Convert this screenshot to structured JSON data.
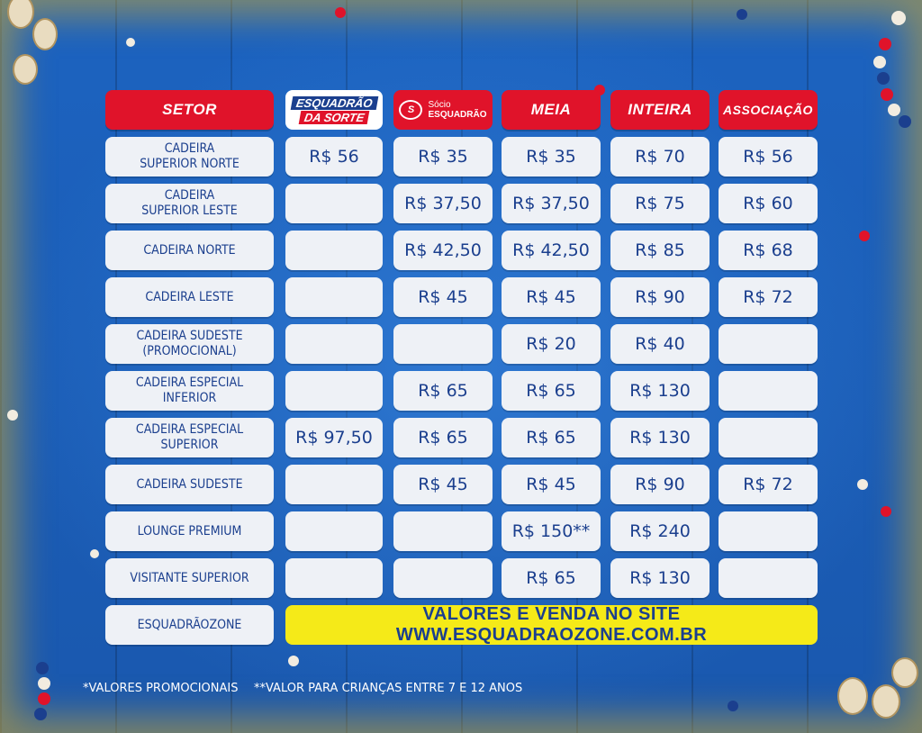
{
  "headers": {
    "setor": "Setor",
    "esquadrao_da_sorte_line1": "Esquadrão",
    "esquadrao_da_sorte_line2": "da Sorte",
    "socio_line1": "Sócio",
    "socio_line2": "Esquadrão",
    "meia": "Meia",
    "inteira": "Inteira",
    "associacao": "Associação"
  },
  "rows": [
    {
      "sector": "CADEIRA\nSUPERIOR NORTE",
      "sorte": "R$ 56",
      "socio": "R$ 35",
      "meia": "R$ 35",
      "inteira": "R$ 70",
      "associacao": "R$ 56"
    },
    {
      "sector": "CADEIRA\nSUPERIOR LESTE",
      "sorte": "",
      "socio": "R$ 37,50",
      "meia": "R$ 37,50",
      "inteira": "R$ 75",
      "associacao": "R$ 60"
    },
    {
      "sector": "CADEIRA NORTE",
      "sorte": "",
      "socio": "R$ 42,50",
      "meia": "R$ 42,50",
      "inteira": "R$ 85",
      "associacao": "R$ 68"
    },
    {
      "sector": "CADEIRA LESTE",
      "sorte": "",
      "socio": "R$ 45",
      "meia": "R$ 45",
      "inteira": "R$ 90",
      "associacao": "R$ 72"
    },
    {
      "sector": "CADEIRA SUDESTE\n(PROMOCIONAL)",
      "sorte": "",
      "socio": "",
      "meia": "R$ 20",
      "inteira": "R$ 40",
      "associacao": ""
    },
    {
      "sector": "CADEIRA ESPECIAL\nINFERIOR",
      "sorte": "",
      "socio": "R$ 65",
      "meia": "R$ 65",
      "inteira": "R$ 130",
      "associacao": ""
    },
    {
      "sector": "CADEIRA ESPECIAL\nSUPERIOR",
      "sorte": "R$ 97,50",
      "socio": "R$ 65",
      "meia": "R$ 65",
      "inteira": "R$ 130",
      "associacao": ""
    },
    {
      "sector": "CADEIRA SUDESTE",
      "sorte": "",
      "socio": "R$ 45",
      "meia": "R$ 45",
      "inteira": "R$ 90",
      "associacao": "R$ 72"
    },
    {
      "sector": "LOUNGE PREMIUM",
      "sorte": "",
      "socio": "",
      "meia": "R$ 150**",
      "inteira": "R$ 240",
      "associacao": ""
    },
    {
      "sector": "VISITANTE SUPERIOR",
      "sorte": "",
      "socio": "",
      "meia": "R$ 65",
      "inteira": "R$ 130",
      "associacao": ""
    }
  ],
  "last_row": {
    "sector": "ESQUADRÃOZONE",
    "banner": "VALORES E VENDA NO SITE WWW.ESQUADRAOZONE.COM.BR"
  },
  "footnotes": {
    "promo": "*VALORES PROMOCIONAIS",
    "kids": "**VALOR PARA CRIANÇAS ENTRE 7 E 12 ANOS"
  },
  "colors": {
    "background_blue": "#1a5fb4",
    "header_red": "#e0132a",
    "cell_white": "#eef1f6",
    "text_navy": "#1b3f8e",
    "banner_yellow": "#f5ea18"
  }
}
